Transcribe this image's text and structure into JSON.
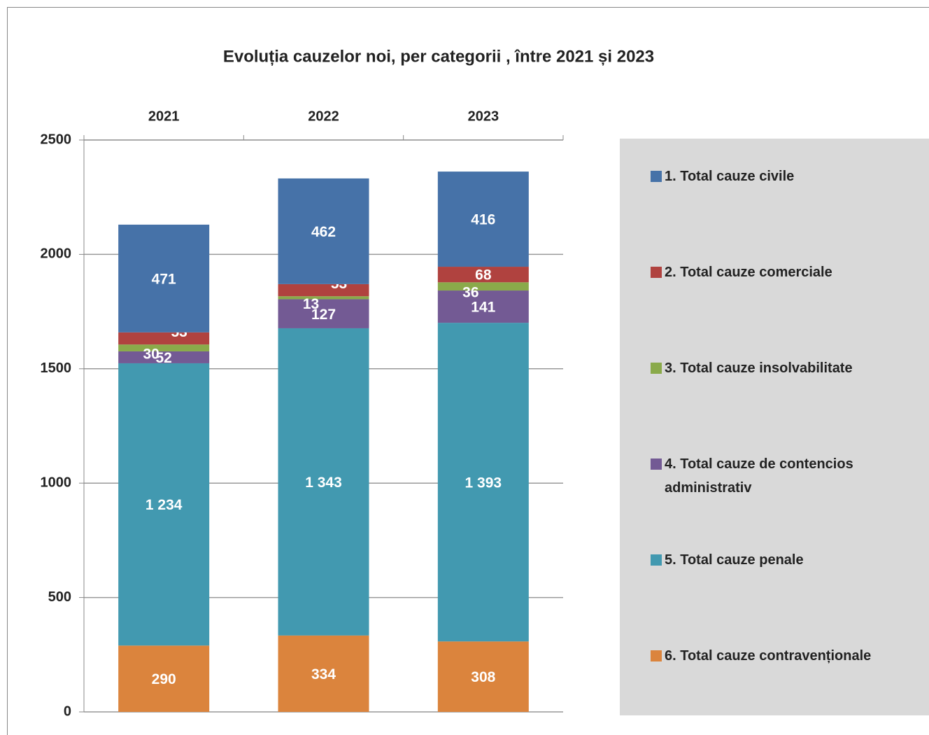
{
  "chart_data": {
    "type": "bar",
    "stacked": true,
    "title": "Evoluția cauzelor noi, per categorii , între  2021  și 2023",
    "categories": [
      "2021",
      "2022",
      "2023"
    ],
    "series": [
      {
        "name": "1. Total cauze civile",
        "color": "#4672a8",
        "values": [
          471,
          462,
          416
        ]
      },
      {
        "name": "2. Total cauze comerciale",
        "color": "#b0423f",
        "values": [
          53,
          53,
          68
        ]
      },
      {
        "name": "3. Total cauze insolvabilitate",
        "color": "#8aaa4a",
        "values": [
          30,
          13,
          36
        ]
      },
      {
        "name": "4. Total cauze de contencios administrativ",
        "color": "#735a94",
        "values": [
          52,
          127,
          141
        ]
      },
      {
        "name": "5. Total cauze penale",
        "color": "#4299b0",
        "values": [
          1234,
          1343,
          1393
        ],
        "value_labels": [
          "1 234",
          "1 343",
          "1 393"
        ]
      },
      {
        "name": "6. Total cauze contravenționale",
        "color": "#db843d",
        "values": [
          290,
          334,
          308
        ]
      }
    ],
    "ylim": [
      0,
      2500
    ],
    "yticks": [
      0,
      500,
      1000,
      1500,
      2000,
      2500
    ],
    "grid": true
  }
}
